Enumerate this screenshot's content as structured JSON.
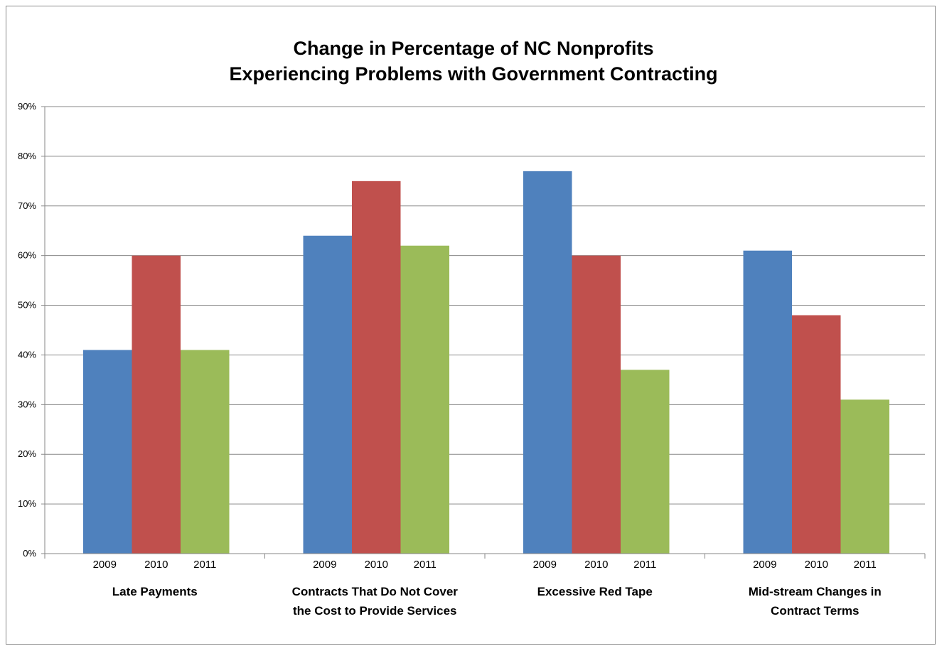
{
  "chart_data": {
    "type": "bar",
    "title": [
      "Change in Percentage of NC Nonprofits",
      "Experiencing Problems with Government Contracting"
    ],
    "categories": [
      [
        "Late Payments"
      ],
      [
        "Contracts That Do Not Cover",
        "the Cost to Provide Services"
      ],
      [
        "Excessive Red Tape"
      ],
      [
        "Mid-stream Changes in",
        "Contract Terms"
      ]
    ],
    "series": [
      {
        "label": "2009",
        "color": "#4f81bd",
        "values": [
          41,
          64,
          77,
          61
        ]
      },
      {
        "label": "2010",
        "color": "#c0504d",
        "values": [
          60,
          75,
          60,
          48
        ]
      },
      {
        "label": "2011",
        "color": "#9bbb59",
        "values": [
          41,
          62,
          37,
          31
        ]
      }
    ],
    "yticks": [
      "0%",
      "10%",
      "20%",
      "30%",
      "40%",
      "50%",
      "60%",
      "70%",
      "80%",
      "90%"
    ],
    "ylim": [
      0,
      90
    ],
    "grid": true,
    "legend": "none"
  }
}
